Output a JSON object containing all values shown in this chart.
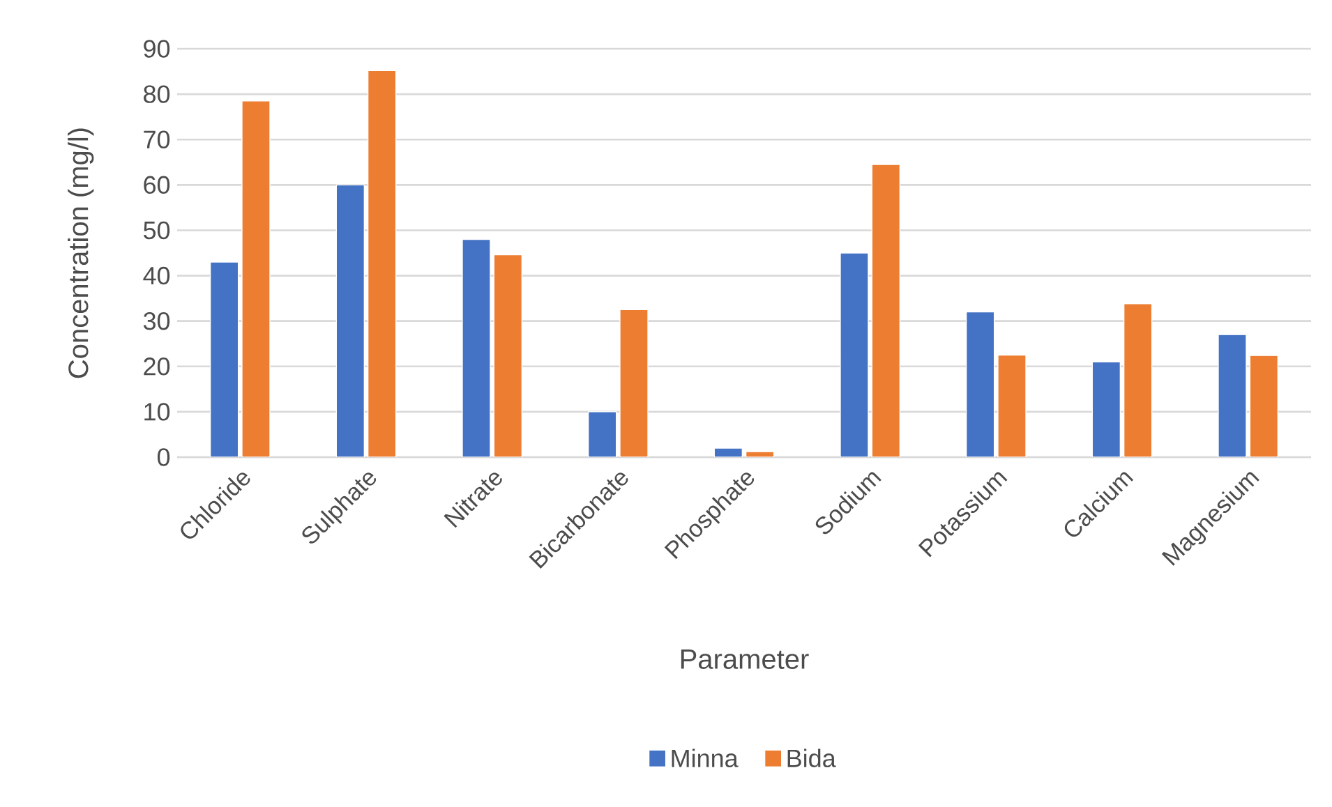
{
  "chart_data": {
    "type": "bar",
    "xlabel": "Parameter",
    "ylabel": "Concentration (mg/l)",
    "categories": [
      "Chloride",
      "Sulphate",
      "Nitrate",
      "Bicarbonate",
      "Phosphate",
      "Sodium",
      "Potassium",
      "Calcium",
      "Magnesium"
    ],
    "series": [
      {
        "name": "Minna",
        "color": "#4472c4",
        "values": [
          43,
          60,
          48,
          10,
          2,
          45,
          32,
          21,
          27
        ]
      },
      {
        "name": "Bida",
        "color": "#ed7d31",
        "values": [
          78.5,
          85.2,
          44.6,
          32.5,
          1.2,
          64.5,
          22.5,
          33.8,
          22.4
        ]
      }
    ],
    "ylim": [
      0,
      90
    ],
    "yticks": [
      0,
      10,
      20,
      30,
      40,
      50,
      60,
      70,
      80,
      90
    ],
    "grid": "y",
    "legend": "bottom"
  }
}
